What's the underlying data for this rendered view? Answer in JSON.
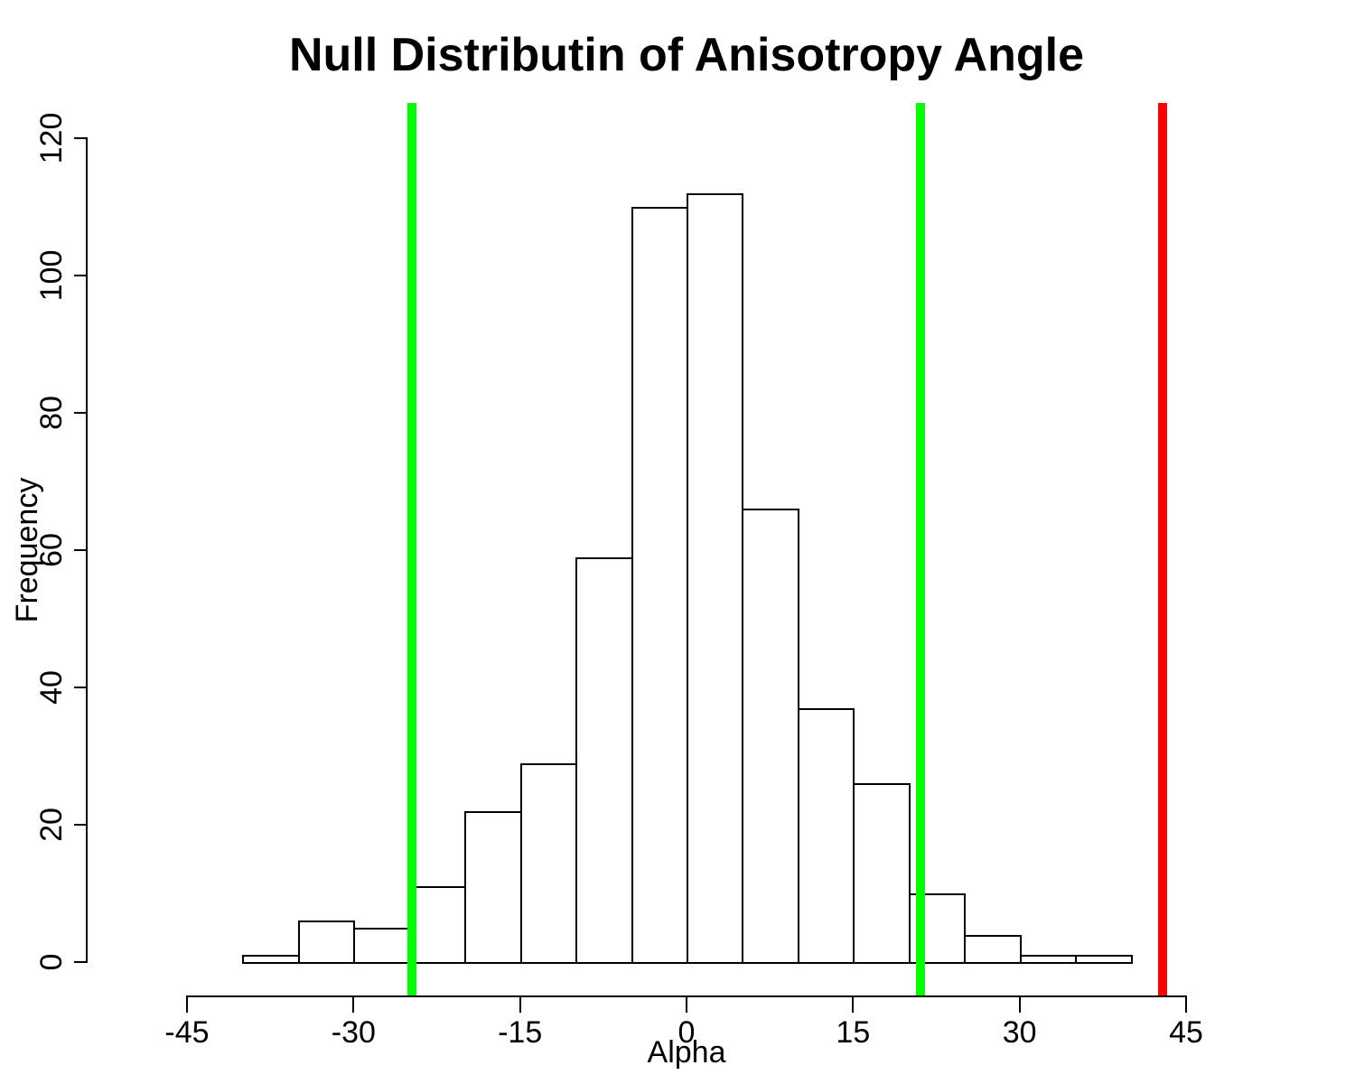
{
  "chart_data": {
    "type": "bar",
    "subtype": "histogram",
    "title": "Null Distributin of Anisotropy Angle",
    "xlabel": "Alpha",
    "ylabel": "Frequency",
    "xlim": [
      -45,
      45
    ],
    "ylim": [
      0,
      120
    ],
    "x_ticks": [
      -45,
      -30,
      -15,
      0,
      15,
      30,
      45
    ],
    "y_ticks": [
      0,
      20,
      40,
      60,
      80,
      100,
      120
    ],
    "bin_edges": [
      -40,
      -35,
      -30,
      -25,
      -20,
      -15,
      -10,
      -5,
      0,
      5,
      10,
      15,
      20,
      25,
      30,
      35,
      40
    ],
    "counts": [
      1,
      6,
      5,
      11,
      22,
      29,
      59,
      110,
      112,
      66,
      37,
      26,
      10,
      4,
      1,
      1
    ],
    "bar_fill": "#FFFFFF",
    "bar_border": "#000000",
    "grid": false,
    "legend": false,
    "vlines": [
      {
        "x": -24.7,
        "color": "#00FF00"
      },
      {
        "x": 21.1,
        "color": "#00FF00"
      },
      {
        "x": 42.9,
        "color": "#FF0000"
      }
    ],
    "accent_green": "#00FF00",
    "accent_red": "#FF0000",
    "axis_color": "#000000"
  }
}
